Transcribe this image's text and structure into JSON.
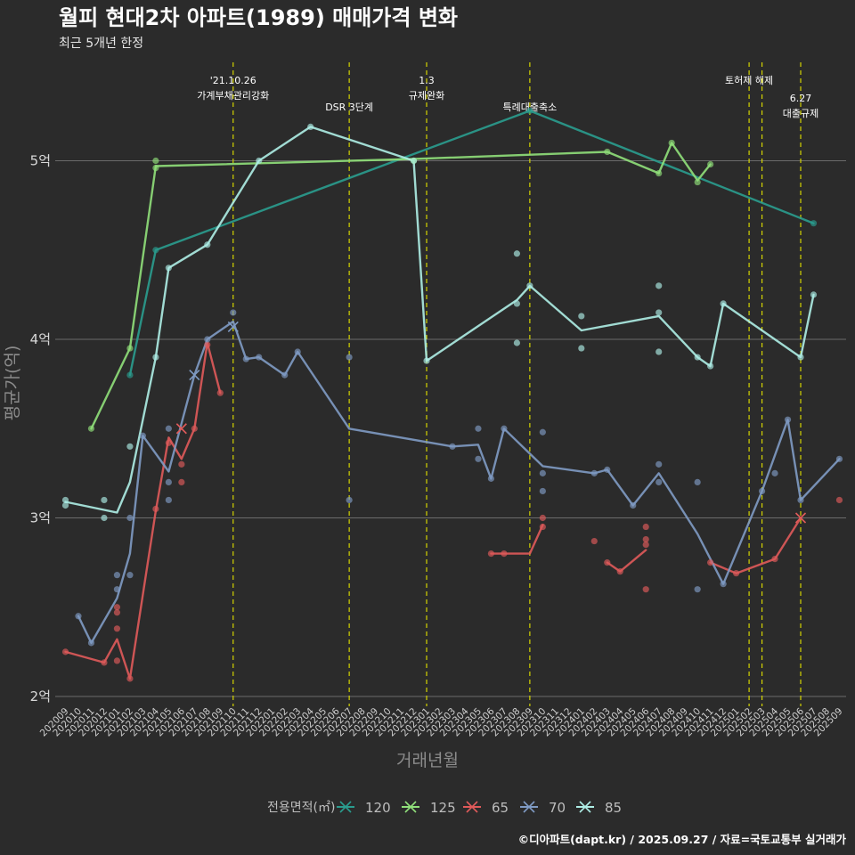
{
  "chart_data": {
    "type": "line",
    "title": "월피 현대2차 아파트(1989) 매매가격 변화",
    "subtitle": "최근 5개년 한정",
    "xlabel": "거래년월",
    "ylabel": "평균가(억)",
    "caption": "©디아파트(dapt.kr) / 2025.09.27 / 자료=국토교통부 실거래가",
    "ylim": [
      1.95,
      5.45
    ],
    "y_ticks": [
      2,
      3,
      4,
      5
    ],
    "y_tick_labels": [
      "2억",
      "3억",
      "4억",
      "5억"
    ],
    "grid": true,
    "categories": [
      "202009",
      "202010",
      "202011",
      "202012",
      "202101",
      "202102",
      "202103",
      "202104",
      "202105",
      "202106",
      "202107",
      "202108",
      "202109",
      "202110",
      "202111",
      "202112",
      "202201",
      "202202",
      "202203",
      "202204",
      "202205",
      "202206",
      "202207",
      "202208",
      "202209",
      "202210",
      "202211",
      "202212",
      "202301",
      "202302",
      "202303",
      "202304",
      "202305",
      "202306",
      "202307",
      "202308",
      "202309",
      "202310",
      "202311",
      "202312",
      "202401",
      "202402",
      "202403",
      "202404",
      "202405",
      "202406",
      "202407",
      "202408",
      "202409",
      "202410",
      "202411",
      "202412",
      "202501",
      "202502",
      "202503",
      "202504",
      "202505",
      "202506",
      "202507",
      "202508",
      "202509"
    ],
    "legend": {
      "title": "전용면적(㎡)",
      "position": "bottom",
      "entries": [
        "120",
        "125",
        "65",
        "70",
        "85"
      ]
    },
    "annotations": [
      {
        "x": "202110",
        "label": "'21.10.26\n가계부채관리강화",
        "level": 0
      },
      {
        "x": "202207",
        "label": "DSR 3단계",
        "level": 1
      },
      {
        "x": "202301",
        "label": "1.3\n규제완화",
        "level": 0
      },
      {
        "x": "202309",
        "label": "특례대출축소",
        "level": 1
      },
      {
        "x": "202502",
        "label": "토허제 해제",
        "level": 0
      },
      {
        "x": "202503",
        "label": "",
        "level": 0
      },
      {
        "x": "202506",
        "label": "6.27\n대출규제",
        "level": 2
      }
    ],
    "series": [
      {
        "name": "120",
        "color": "#2a9d8f",
        "line": [
          [
            "202102",
            3.8
          ],
          [
            "202104",
            4.5
          ],
          [
            "202309",
            5.28
          ],
          [
            "202507",
            4.65
          ]
        ],
        "points": [
          [
            "202102",
            3.8
          ],
          [
            "202104",
            4.5
          ],
          [
            "202309",
            5.28
          ],
          [
            "202507",
            4.65
          ]
        ],
        "cross": []
      },
      {
        "name": "125",
        "color": "#90e07a",
        "line": [
          [
            "202011",
            3.5
          ],
          [
            "202102",
            3.95
          ],
          [
            "202104",
            4.97
          ],
          [
            "202212",
            5.01
          ],
          [
            "202403",
            5.05
          ],
          [
            "202407",
            4.93
          ],
          [
            "202408",
            5.1
          ],
          [
            "202410",
            4.89
          ],
          [
            "202411",
            4.98
          ]
        ],
        "points": [
          [
            "202011",
            3.5
          ],
          [
            "202102",
            3.95
          ],
          [
            "202104",
            5.0
          ],
          [
            "202104",
            4.96
          ],
          [
            "202212",
            5.0
          ],
          [
            "202403",
            5.05
          ],
          [
            "202407",
            4.93
          ],
          [
            "202408",
            5.1
          ],
          [
            "202410",
            4.88
          ],
          [
            "202411",
            4.98
          ]
        ],
        "cross": []
      },
      {
        "name": "65",
        "color": "#e05a5a",
        "line": [
          [
            "202009",
            2.25
          ],
          [
            "202012",
            2.19
          ],
          [
            "202101",
            2.32
          ],
          [
            "202102",
            2.1
          ],
          [
            "202104",
            3.04
          ],
          [
            "202105",
            3.45
          ],
          [
            "202106",
            3.33
          ],
          [
            "202107",
            3.5
          ],
          [
            "202108",
            3.98
          ],
          [
            "202109",
            3.7
          ]
        ],
        "line2": [
          [
            "202306",
            2.8
          ],
          [
            "202307",
            2.8
          ],
          [
            "202309",
            2.8
          ],
          [
            "202310",
            2.96
          ]
        ],
        "line3": [
          [
            "202403",
            2.75
          ],
          [
            "202404",
            2.7
          ],
          [
            "202406",
            2.82
          ]
        ],
        "line4": [
          [
            "202411",
            2.75
          ],
          [
            "202501",
            2.69
          ],
          [
            "202504",
            2.77
          ],
          [
            "202506",
            3.0
          ]
        ],
        "points": [
          [
            "202009",
            2.25
          ],
          [
            "202012",
            2.19
          ],
          [
            "202101",
            2.2
          ],
          [
            "202101",
            2.38
          ],
          [
            "202101",
            2.47
          ],
          [
            "202101",
            2.5
          ],
          [
            "202102",
            2.1
          ],
          [
            "202104",
            3.05
          ],
          [
            "202105",
            3.42
          ],
          [
            "202106",
            3.2
          ],
          [
            "202106",
            3.3
          ],
          [
            "202107",
            3.5
          ],
          [
            "202108",
            3.97
          ],
          [
            "202109",
            3.7
          ],
          [
            "202306",
            2.8
          ],
          [
            "202307",
            2.8
          ],
          [
            "202310",
            3.0
          ],
          [
            "202310",
            2.95
          ],
          [
            "202402",
            2.87
          ],
          [
            "202403",
            2.75
          ],
          [
            "202404",
            2.7
          ],
          [
            "202406",
            2.95
          ],
          [
            "202406",
            2.88
          ],
          [
            "202406",
            2.85
          ],
          [
            "202406",
            2.6
          ],
          [
            "202411",
            2.75
          ],
          [
            "202501",
            2.69
          ],
          [
            "202504",
            2.77
          ],
          [
            "202509",
            3.1
          ]
        ],
        "cross": [
          [
            "202106",
            3.5
          ],
          [
            "202506",
            3.0
          ]
        ]
      },
      {
        "name": "70",
        "color": "#7f9bc4",
        "line": [
          [
            "202010",
            2.45
          ],
          [
            "202011",
            2.3
          ],
          [
            "202101",
            2.55
          ],
          [
            "202102",
            2.8
          ],
          [
            "202103",
            3.46
          ],
          [
            "202105",
            3.26
          ],
          [
            "202107",
            3.8
          ],
          [
            "202108",
            4.0
          ],
          [
            "202110",
            4.1
          ],
          [
            "202111",
            3.89
          ],
          [
            "202112",
            3.9
          ],
          [
            "202202",
            3.8
          ],
          [
            "202203",
            3.93
          ],
          [
            "202207",
            3.5
          ],
          [
            "202303",
            3.4
          ],
          [
            "202305",
            3.41
          ],
          [
            "202306",
            3.22
          ],
          [
            "202307",
            3.5
          ],
          [
            "202310",
            3.29
          ],
          [
            "202402",
            3.25
          ],
          [
            "202403",
            3.27
          ],
          [
            "202405",
            3.07
          ],
          [
            "202407",
            3.25
          ],
          [
            "202410",
            2.91
          ],
          [
            "202412",
            2.63
          ],
          [
            "202503",
            3.15
          ],
          [
            "202505",
            3.55
          ],
          [
            "202506",
            3.1
          ],
          [
            "202509",
            3.33
          ]
        ],
        "points": [
          [
            "202010",
            2.45
          ],
          [
            "202011",
            2.3
          ],
          [
            "202101",
            2.6
          ],
          [
            "202101",
            2.68
          ],
          [
            "202102",
            3.0
          ],
          [
            "202102",
            2.68
          ],
          [
            "202103",
            3.46
          ],
          [
            "202105",
            3.5
          ],
          [
            "202105",
            3.2
          ],
          [
            "202105",
            3.1
          ],
          [
            "202108",
            4.0
          ],
          [
            "202110",
            4.15
          ],
          [
            "202111",
            3.89
          ],
          [
            "202112",
            3.9
          ],
          [
            "202202",
            3.8
          ],
          [
            "202203",
            3.93
          ],
          [
            "202207",
            3.9
          ],
          [
            "202207",
            3.1
          ],
          [
            "202303",
            3.4
          ],
          [
            "202305",
            3.5
          ],
          [
            "202305",
            3.33
          ],
          [
            "202306",
            3.22
          ],
          [
            "202307",
            3.5
          ],
          [
            "202310",
            3.48
          ],
          [
            "202310",
            3.25
          ],
          [
            "202310",
            3.15
          ],
          [
            "202402",
            3.25
          ],
          [
            "202403",
            3.27
          ],
          [
            "202405",
            3.07
          ],
          [
            "202407",
            3.3
          ],
          [
            "202407",
            3.2
          ],
          [
            "202410",
            3.2
          ],
          [
            "202410",
            2.6
          ],
          [
            "202412",
            2.63
          ],
          [
            "202503",
            3.15
          ],
          [
            "202504",
            3.25
          ],
          [
            "202505",
            3.55
          ],
          [
            "202506",
            3.1
          ],
          [
            "202509",
            3.33
          ]
        ],
        "cross": [
          [
            "202107",
            3.8
          ],
          [
            "202110",
            4.07
          ]
        ]
      },
      {
        "name": "85",
        "color": "#aeeee6",
        "line": [
          [
            "202009",
            3.09
          ],
          [
            "202101",
            3.03
          ],
          [
            "202102",
            3.2
          ],
          [
            "202104",
            3.9
          ],
          [
            "202105",
            4.4
          ],
          [
            "202108",
            4.53
          ],
          [
            "202112",
            5.0
          ],
          [
            "202204",
            5.19
          ],
          [
            "202212",
            5.0
          ],
          [
            "202301",
            3.88
          ],
          [
            "202308",
            4.22
          ],
          [
            "202309",
            4.3
          ],
          [
            "202401",
            4.05
          ],
          [
            "202407",
            4.13
          ],
          [
            "202410",
            3.9
          ],
          [
            "202411",
            3.85
          ],
          [
            "202412",
            4.2
          ],
          [
            "202506",
            3.9
          ],
          [
            "202507",
            4.25
          ]
        ],
        "points": [
          [
            "202009",
            3.1
          ],
          [
            "202009",
            3.07
          ],
          [
            "202012",
            3.1
          ],
          [
            "202012",
            3.0
          ],
          [
            "202102",
            3.4
          ],
          [
            "202104",
            3.9
          ],
          [
            "202105",
            4.4
          ],
          [
            "202108",
            4.53
          ],
          [
            "202112",
            5.0
          ],
          [
            "202204",
            5.19
          ],
          [
            "202212",
            5.0
          ],
          [
            "202301",
            3.88
          ],
          [
            "202308",
            4.48
          ],
          [
            "202308",
            4.2
          ],
          [
            "202308",
            3.98
          ],
          [
            "202309",
            4.3
          ],
          [
            "202401",
            4.13
          ],
          [
            "202401",
            3.95
          ],
          [
            "202407",
            4.3
          ],
          [
            "202407",
            4.15
          ],
          [
            "202407",
            3.93
          ],
          [
            "202410",
            3.9
          ],
          [
            "202411",
            3.85
          ],
          [
            "202412",
            4.2
          ],
          [
            "202506",
            3.9
          ],
          [
            "202507",
            4.25
          ]
        ],
        "cross": []
      }
    ]
  }
}
